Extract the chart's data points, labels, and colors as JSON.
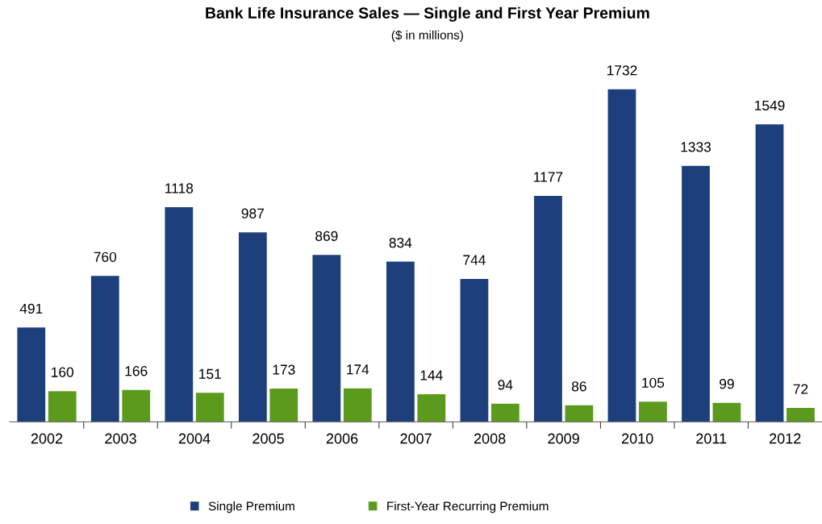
{
  "chart_data": {
    "type": "bar",
    "title": "Bank Life Insurance Sales — Single and First Year Premium",
    "subtitle": "($ in millions)",
    "categories": [
      "2002",
      "2003",
      "2004",
      "2005",
      "2006",
      "2007",
      "2008",
      "2009",
      "2010",
      "2011",
      "2012"
    ],
    "series": [
      {
        "name": "Single Premium",
        "color": "#1d3f7c",
        "values": [
          491,
          760,
          1118,
          987,
          869,
          834,
          744,
          1177,
          1732,
          1333,
          1549
        ]
      },
      {
        "name": "First-Year Recurring Premium",
        "color": "#5b9a1c",
        "values": [
          160,
          166,
          151,
          173,
          174,
          144,
          94,
          86,
          105,
          99,
          72
        ]
      }
    ],
    "data_labels": true,
    "grid": false,
    "legend": "bottom"
  }
}
